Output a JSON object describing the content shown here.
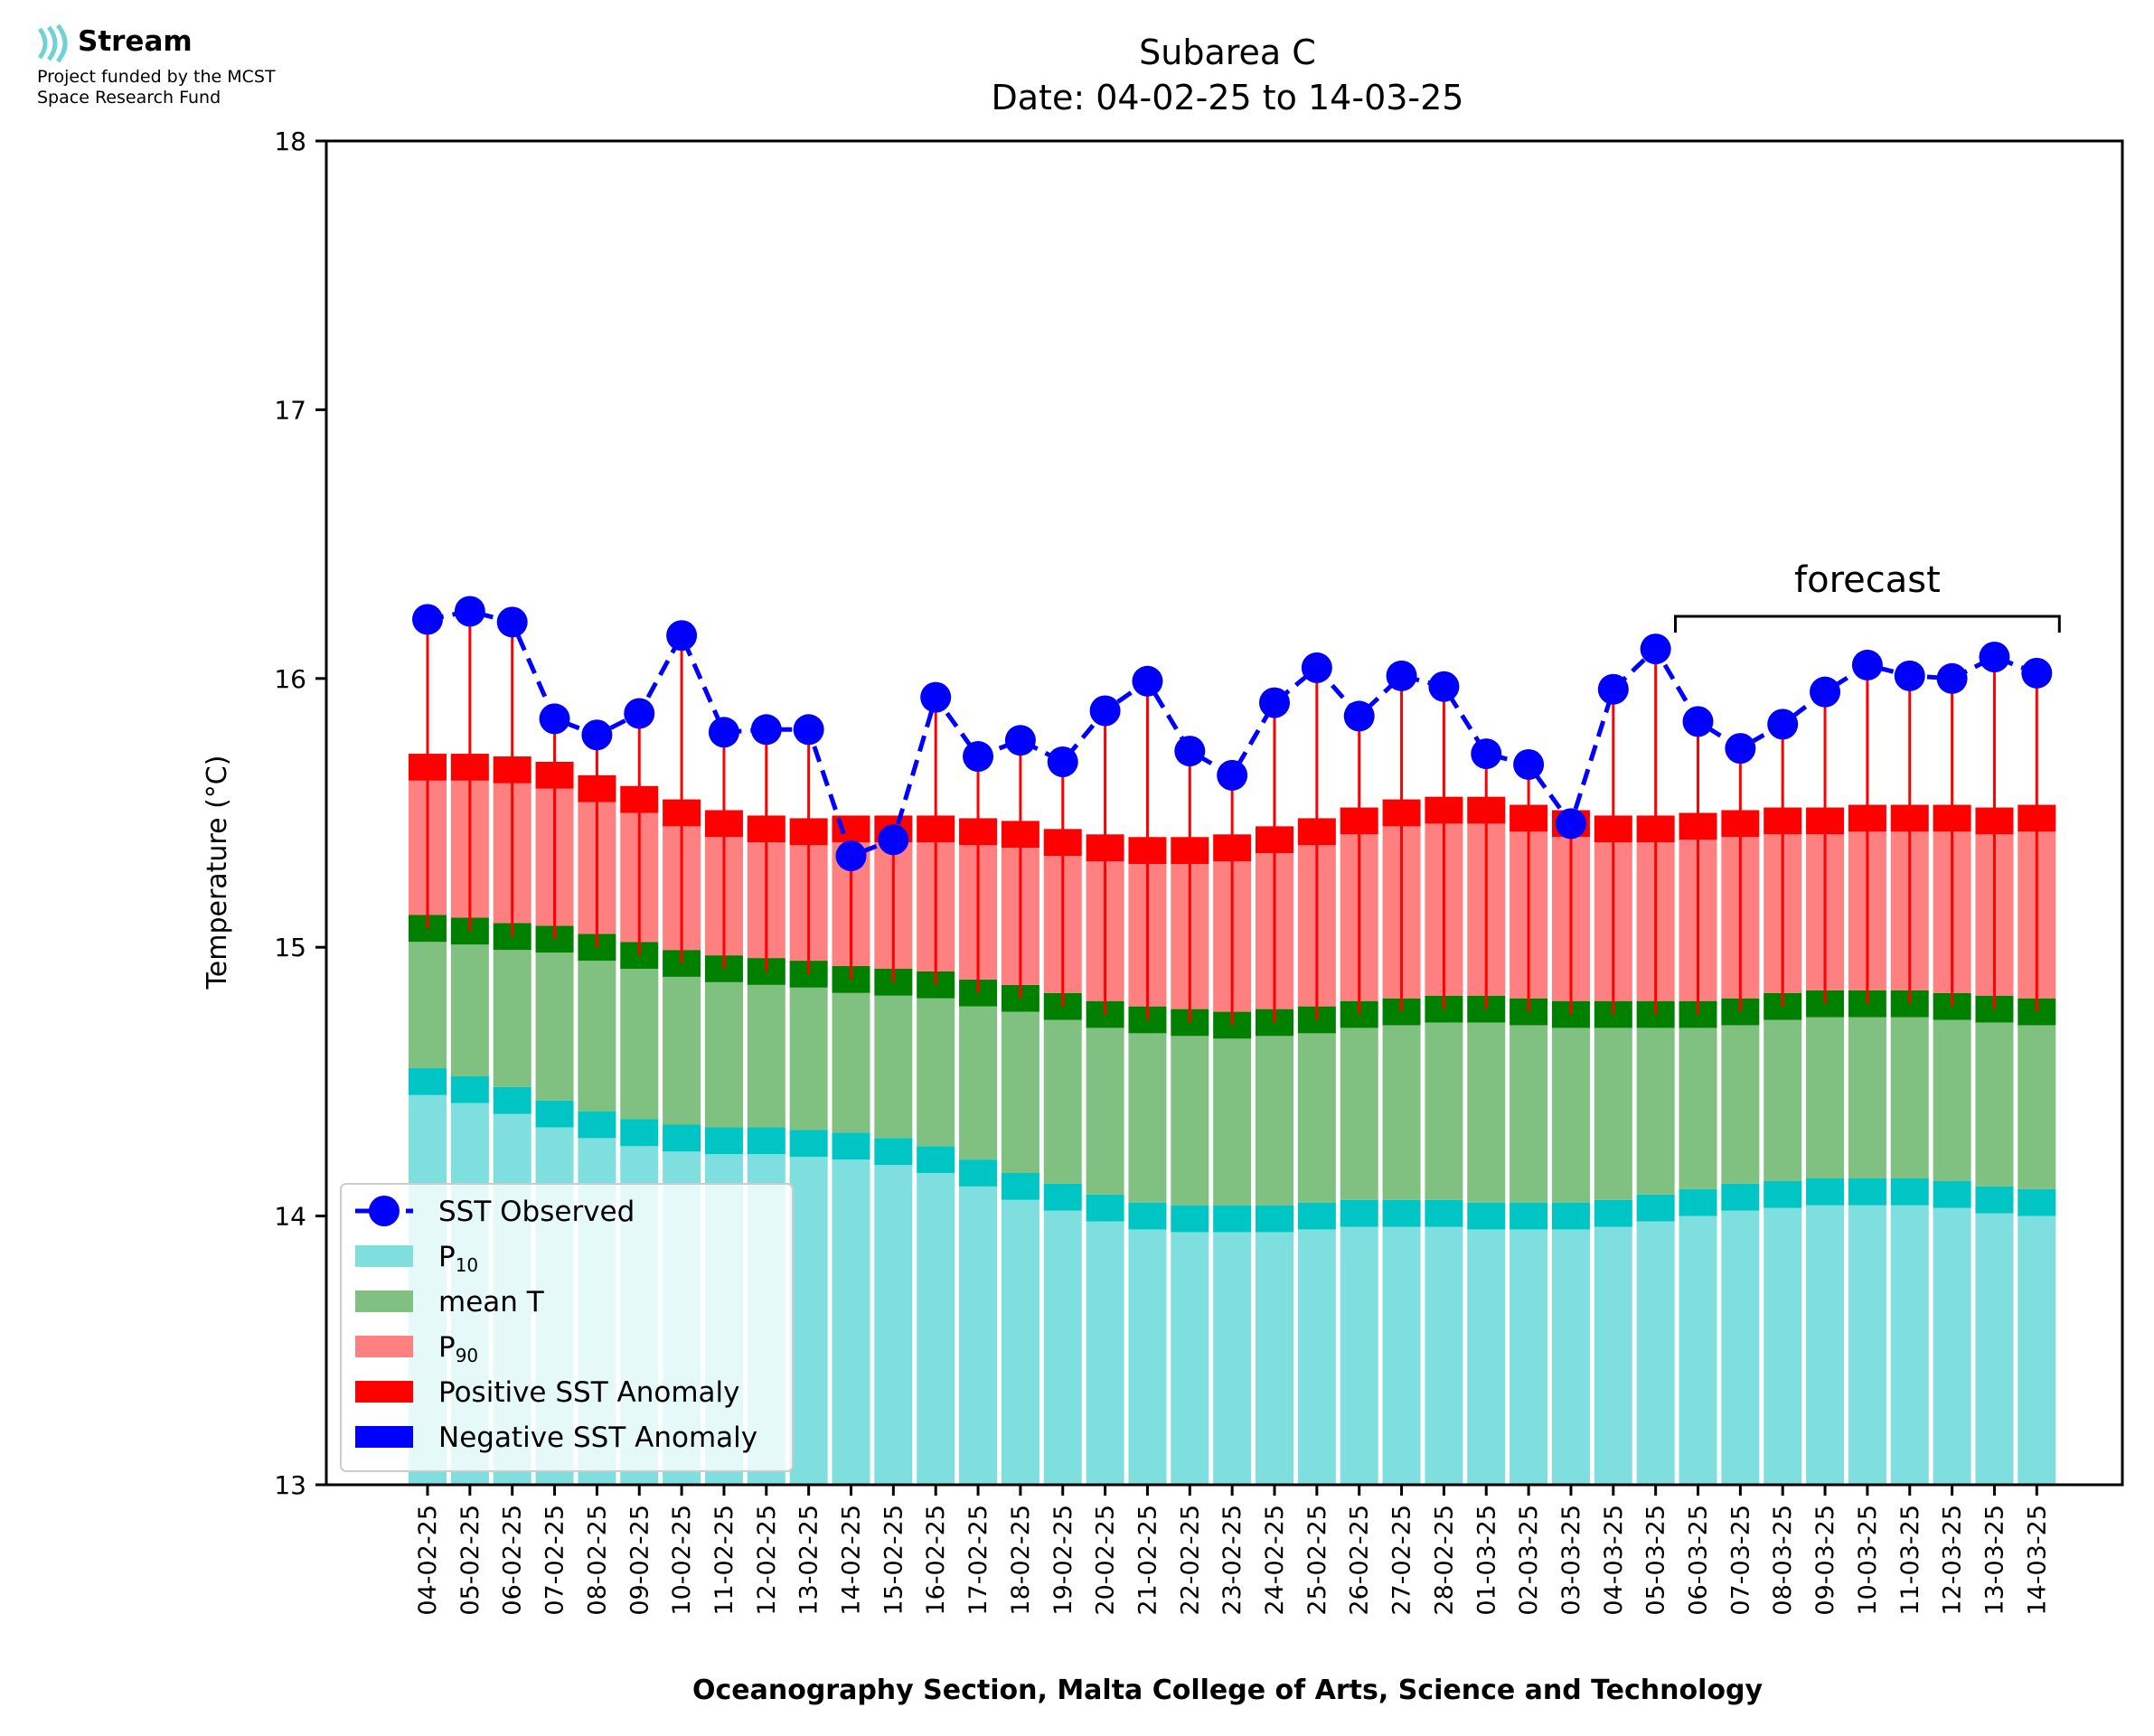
{
  "logo": {
    "name": "Stream",
    "subtitle": "Project funded by the MCST\nSpace Research Fund",
    "color": "#6fd3d6"
  },
  "chart_data": {
    "type": "bar",
    "title": "Subarea C",
    "subtitle": "Date: 04-02-25 to 14-03-25",
    "xlabel": "Oceanography Section, Malta College of Arts, Science and Technology",
    "ylabel": "Temperature (°C)",
    "ylim": [
      13,
      18
    ],
    "yticks": [
      13,
      14,
      15,
      16,
      17,
      18
    ],
    "grid": false,
    "legend_position": "lower-left",
    "categories": [
      "04-02-25",
      "05-02-25",
      "06-02-25",
      "07-02-25",
      "08-02-25",
      "09-02-25",
      "10-02-25",
      "11-02-25",
      "12-02-25",
      "13-02-25",
      "14-02-25",
      "15-02-25",
      "16-02-25",
      "17-02-25",
      "18-02-25",
      "19-02-25",
      "20-02-25",
      "21-02-25",
      "22-02-25",
      "23-02-25",
      "24-02-25",
      "25-02-25",
      "26-02-25",
      "27-02-25",
      "28-02-25",
      "01-03-25",
      "02-03-25",
      "03-03-25",
      "04-03-25",
      "05-03-25",
      "06-03-25",
      "07-03-25",
      "08-03-25",
      "09-03-25",
      "10-03-25",
      "11-03-25",
      "12-03-25",
      "13-03-25",
      "14-03-25"
    ],
    "series": [
      {
        "name": "SST Observed",
        "type": "line",
        "color": "#0000ff",
        "values": [
          16.22,
          16.25,
          16.21,
          15.85,
          15.79,
          15.87,
          16.16,
          15.8,
          15.81,
          15.81,
          15.34,
          15.4,
          15.93,
          15.71,
          15.77,
          15.69,
          15.88,
          15.99,
          15.73,
          15.64,
          15.91,
          16.04,
          15.86,
          16.01,
          15.97,
          15.72,
          15.68,
          15.46,
          15.96,
          16.11,
          15.84,
          15.74,
          15.83,
          15.95,
          16.05,
          16.01,
          16.0,
          16.08,
          16.02
        ]
      },
      {
        "name": "P₁₀",
        "type": "bar",
        "color": "#7fdfdf",
        "values": [
          14.5,
          14.47,
          14.43,
          14.38,
          14.34,
          14.31,
          14.29,
          14.28,
          14.28,
          14.27,
          14.26,
          14.24,
          14.21,
          14.16,
          14.11,
          14.07,
          14.03,
          14.0,
          13.99,
          13.99,
          13.99,
          14.0,
          14.01,
          14.01,
          14.01,
          14.0,
          14.0,
          14.0,
          14.01,
          14.03,
          14.05,
          14.07,
          14.08,
          14.09,
          14.09,
          14.09,
          14.08,
          14.06,
          14.05
        ]
      },
      {
        "name": "mean T",
        "type": "bar",
        "color": "#80c080",
        "values": [
          15.07,
          15.06,
          15.04,
          15.03,
          15.0,
          14.97,
          14.94,
          14.92,
          14.91,
          14.9,
          14.88,
          14.87,
          14.86,
          14.83,
          14.81,
          14.78,
          14.75,
          14.73,
          14.72,
          14.71,
          14.72,
          14.73,
          14.75,
          14.76,
          14.77,
          14.77,
          14.76,
          14.75,
          14.75,
          14.75,
          14.75,
          14.76,
          14.78,
          14.79,
          14.79,
          14.79,
          14.78,
          14.77,
          14.76
        ]
      },
      {
        "name": "P₉₀",
        "type": "bar",
        "color": "#ff8080",
        "values": [
          15.67,
          15.67,
          15.66,
          15.64,
          15.59,
          15.55,
          15.5,
          15.46,
          15.44,
          15.43,
          15.44,
          15.44,
          15.44,
          15.43,
          15.42,
          15.39,
          15.37,
          15.36,
          15.36,
          15.37,
          15.4,
          15.43,
          15.47,
          15.5,
          15.51,
          15.51,
          15.48,
          15.46,
          15.44,
          15.44,
          15.45,
          15.46,
          15.47,
          15.47,
          15.48,
          15.48,
          15.48,
          15.47,
          15.48
        ]
      }
    ],
    "band_colors": {
      "p10_edge": "#00c5c5",
      "mean_edge": "#008000",
      "p90_edge": "#ff0000"
    },
    "legend": [
      {
        "label": "SST Observed",
        "kind": "line",
        "color": "#0000ff"
      },
      {
        "label": "P",
        "sub": "10",
        "kind": "patch",
        "color": "#7fdfdf"
      },
      {
        "label": "mean T",
        "kind": "patch",
        "color": "#80c080"
      },
      {
        "label": "P",
        "sub": "90",
        "kind": "patch",
        "color": "#ff8080"
      },
      {
        "label": "Positive SST Anomaly",
        "kind": "patch",
        "color": "#ff0000"
      },
      {
        "label": "Negative SST Anomaly",
        "kind": "patch",
        "color": "#0000ff"
      }
    ],
    "annotation": {
      "text": "forecast",
      "from": "06-03-25",
      "to": "14-03-25"
    }
  }
}
